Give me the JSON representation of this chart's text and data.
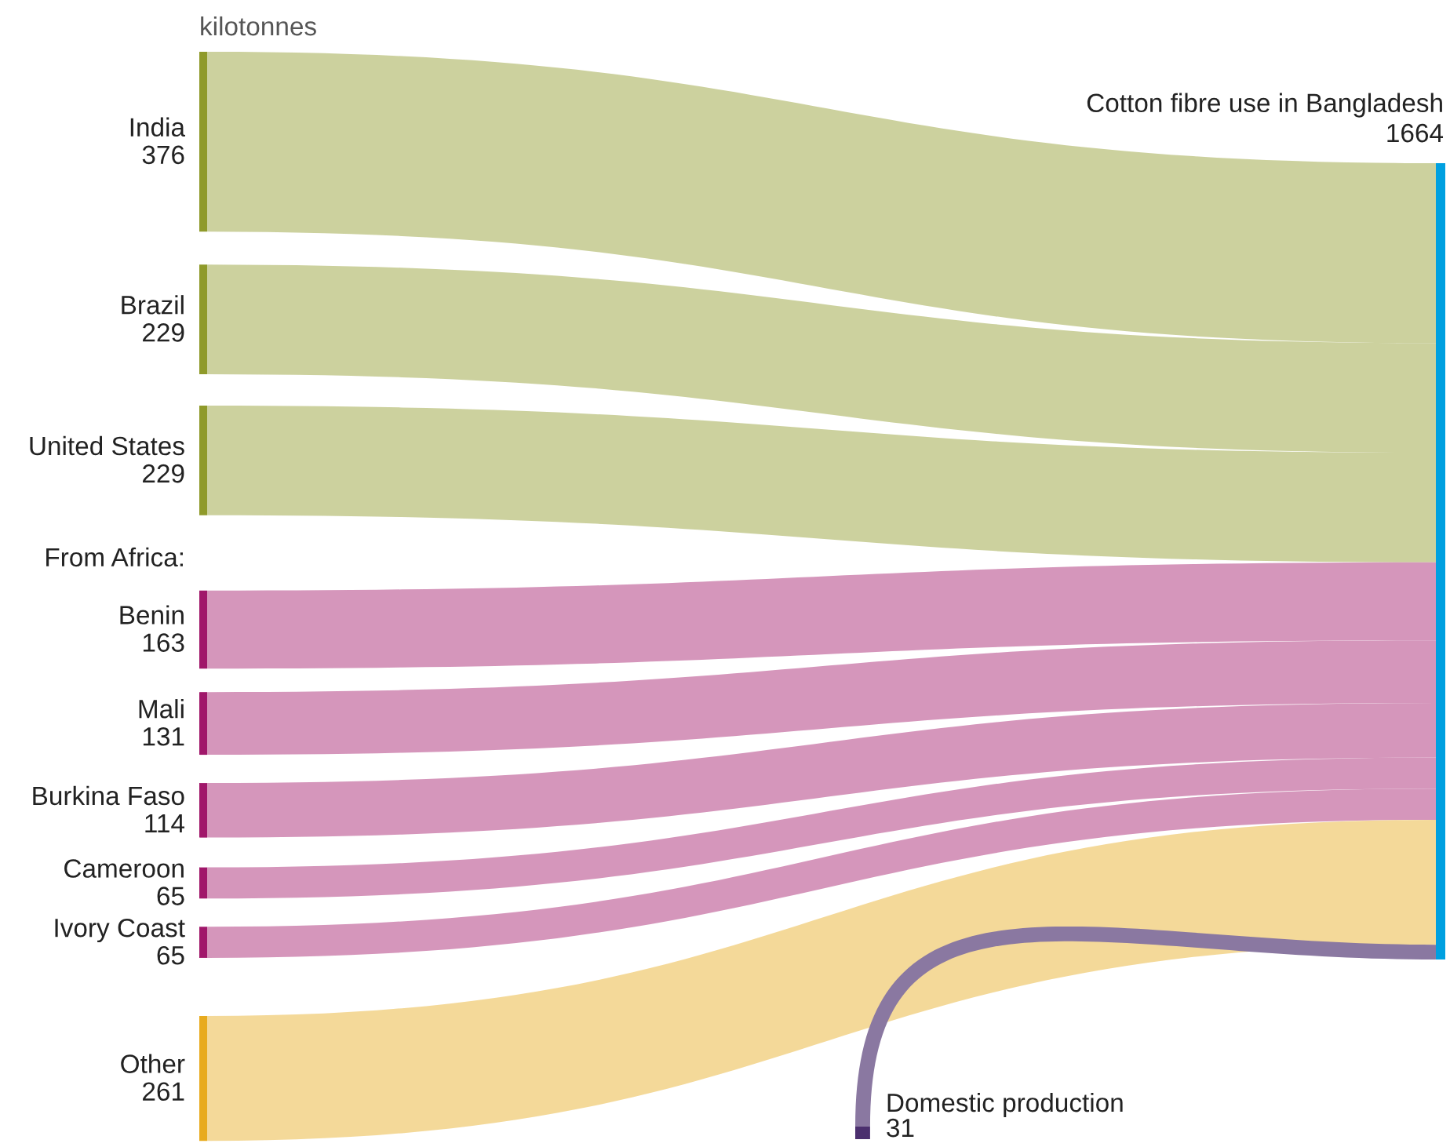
{
  "chart_data": {
    "type": "other",
    "subtitle": "kilotonnes",
    "categories": [
      "India",
      "Brazil",
      "United States",
      "Benin",
      "Mali",
      "Burkina Faso",
      "Cameroon",
      "Ivory Coast",
      "Other",
      "Domestic production"
    ],
    "values": [
      376,
      229,
      229,
      163,
      131,
      114,
      65,
      65,
      261,
      31
    ],
    "colors": [
      "#8f9a2a",
      "#8f9a2a",
      "#8f9a2a",
      "#a0176a",
      "#a0176a",
      "#a0176a",
      "#a0176a",
      "#a0176a",
      "#e8ab1e",
      "#4b2f6e"
    ],
    "color": "#00a0e0",
    "data_labels": true,
    "annotations": [
      "From Africa:",
      "Cotton fibre use in Bangladesh",
      "1664"
    ]
  }
}
